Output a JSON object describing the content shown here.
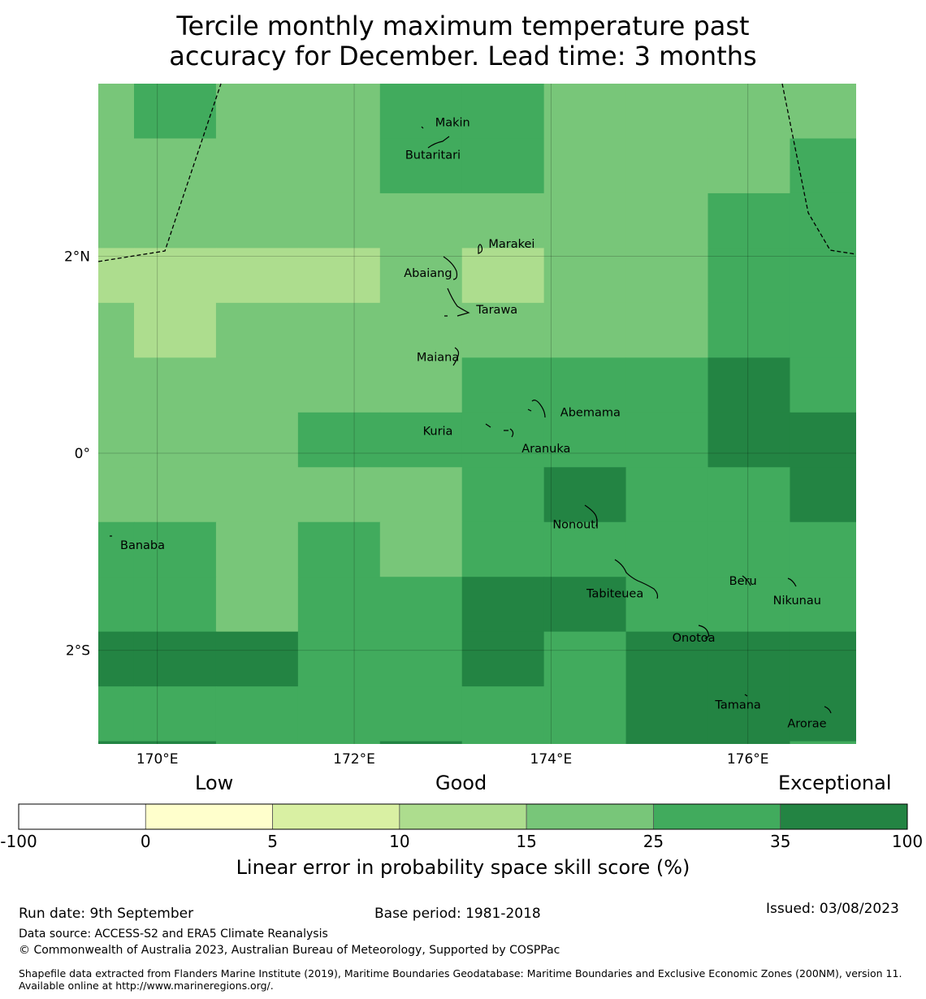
{
  "title_line1": "Tercile monthly maximum temperature past",
  "title_line2": "accuracy for December. Lead time: 3 months",
  "map": {
    "lon_range": [
      169.4,
      177.1
    ],
    "lat_range": [
      -2.95,
      3.75
    ],
    "lon_ticks": [
      {
        "value": 170,
        "label": "170°E"
      },
      {
        "value": 172,
        "label": "172°E"
      },
      {
        "value": 174,
        "label": "174°E"
      },
      {
        "value": 176,
        "label": "176°E"
      }
    ],
    "lat_ticks": [
      {
        "value": 2,
        "label": "2°N"
      },
      {
        "value": 0,
        "label": "0°"
      },
      {
        "value": -2,
        "label": "2°S"
      }
    ],
    "grid": {
      "lon_start": 168.93,
      "lon_step": 0.833,
      "lat_start": 3.75,
      "lat_step": -0.556,
      "classes": [
        [
          4,
          5,
          4,
          4,
          5,
          5,
          4,
          4,
          4,
          4,
          5
        ],
        [
          4,
          4,
          4,
          4,
          5,
          5,
          4,
          4,
          4,
          5,
          5
        ],
        [
          4,
          4,
          4,
          4,
          4,
          4,
          4,
          4,
          5,
          5,
          5
        ],
        [
          3,
          3,
          3,
          3,
          4,
          3,
          4,
          4,
          5,
          5,
          6
        ],
        [
          4,
          3,
          4,
          4,
          4,
          4,
          4,
          4,
          5,
          5,
          5
        ],
        [
          4,
          4,
          4,
          4,
          4,
          5,
          5,
          5,
          6,
          5,
          5
        ],
        [
          4,
          4,
          4,
          5,
          5,
          5,
          5,
          5,
          6,
          6,
          6
        ],
        [
          4,
          4,
          4,
          4,
          4,
          5,
          6,
          5,
          5,
          6,
          5
        ],
        [
          5,
          5,
          4,
          5,
          4,
          5,
          5,
          5,
          5,
          5,
          5
        ],
        [
          5,
          5,
          4,
          5,
          5,
          6,
          6,
          5,
          5,
          5,
          5
        ],
        [
          6,
          6,
          6,
          5,
          5,
          6,
          5,
          6,
          6,
          6,
          5
        ],
        [
          5,
          5,
          5,
          5,
          5,
          5,
          5,
          6,
          6,
          6,
          5
        ],
        [
          6,
          6,
          5,
          5,
          6,
          5,
          5,
          6,
          6,
          5,
          5
        ]
      ]
    },
    "places": [
      {
        "name": "Makin",
        "lon": 173.0,
        "lat": 3.35
      },
      {
        "name": "Butaritari",
        "lon": 172.8,
        "lat": 3.02
      },
      {
        "name": "Marakei",
        "lon": 173.6,
        "lat": 2.12
      },
      {
        "name": "Abaiang",
        "lon": 172.75,
        "lat": 1.82
      },
      {
        "name": "Tarawa",
        "lon": 173.45,
        "lat": 1.45
      },
      {
        "name": "Maiana",
        "lon": 172.85,
        "lat": 0.97
      },
      {
        "name": "Abemama",
        "lon": 174.4,
        "lat": 0.41
      },
      {
        "name": "Kuria",
        "lon": 172.85,
        "lat": 0.22
      },
      {
        "name": "Aranuka",
        "lon": 173.95,
        "lat": 0.04
      },
      {
        "name": "Nonouti",
        "lon": 174.25,
        "lat": -0.73
      },
      {
        "name": "Banaba",
        "lon": 169.85,
        "lat": -0.94
      },
      {
        "name": "Beru",
        "lon": 175.95,
        "lat": -1.3
      },
      {
        "name": "Tabiteuea",
        "lon": 174.65,
        "lat": -1.43
      },
      {
        "name": "Nikunau",
        "lon": 176.5,
        "lat": -1.5
      },
      {
        "name": "Onotoa",
        "lon": 175.45,
        "lat": -1.88
      },
      {
        "name": "Tamana",
        "lon": 175.9,
        "lat": -2.56
      },
      {
        "name": "Arorae",
        "lon": 176.6,
        "lat": -2.75
      }
    ]
  },
  "colorbar": {
    "categories": [
      {
        "label": "Low",
        "position": "left"
      },
      {
        "label": "Good",
        "position": "center"
      },
      {
        "label": "Exceptional",
        "position": "right"
      }
    ],
    "colors": [
      "#ffffff",
      "#ffffcc",
      "#d9f0a3",
      "#addd8e",
      "#78c679",
      "#41ab5d",
      "#238443"
    ],
    "ticks": [
      "-100",
      "0",
      "5",
      "10",
      "15",
      "25",
      "35",
      "100"
    ],
    "label": "Linear error in probability space skill score (%)"
  },
  "footer": {
    "run_date": "Run date: 9th September",
    "base_period": "Base period: 1981-2018",
    "issued": "Issued: 03/08/2023",
    "data_source": "Data source: ACCESS-S2 and ERA5 Climate Reanalysis",
    "copyright": "© Commonwealth of Australia 2023, Australian Bureau of Meteorology, Supported by COSPPac",
    "shapefile": "Shapefile data extracted from Flanders Marine Institute (2019), Maritime Boundaries Geodatabase: Maritime Boundaries and Exclusive Economic Zones (200NM), version 11. Available online at http://www.marineregions.org/."
  }
}
